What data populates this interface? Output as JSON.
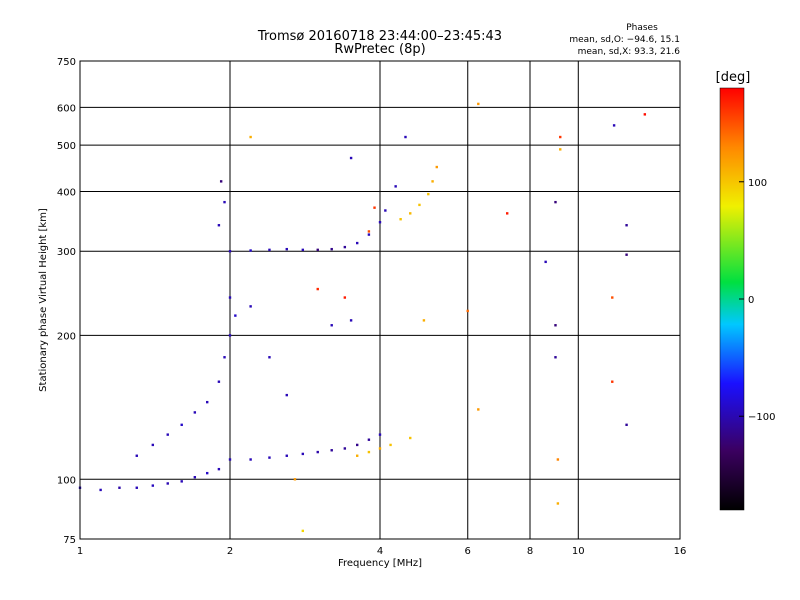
{
  "chart_data": {
    "type": "scatter",
    "title": "Tromsø 20160718 23:44:00–23:45:43",
    "subtitle": "RwPretec (8p)",
    "xlabel": "Frequency [MHz]",
    "ylabel": "Stationary phase Virtual Height [km]",
    "x_scale": "log",
    "y_scale": "log",
    "xlim": [
      1,
      16
    ],
    "ylim": [
      75,
      750
    ],
    "x_ticks": [
      1,
      2,
      4,
      6,
      8,
      10,
      16
    ],
    "x_tick_labels": [
      "1",
      "2",
      "4",
      "6",
      "8",
      "10",
      "16"
    ],
    "y_ticks": [
      75,
      100,
      200,
      300,
      400,
      500,
      600,
      750
    ],
    "y_tick_labels": [
      "75",
      "100",
      "200",
      "300",
      "400",
      "500",
      "600",
      "750"
    ],
    "grid": true,
    "phase_box": {
      "title": "Phases",
      "line_o": "mean, sd,O: −94.6, 15.1",
      "line_x": "mean, sd,X:  93.3, 21.6"
    },
    "colorbar": {
      "label": "[deg]",
      "ticks": [
        100,
        0,
        -100
      ],
      "tick_labels": [
        "100",
        "0",
        "−100"
      ],
      "range": [
        -180,
        180
      ],
      "colors": [
        "#000000",
        "#3b0060",
        "#1a10ff",
        "#00c8ff",
        "#00e040",
        "#f0f000",
        "#ff8800",
        "#ff0000"
      ]
    },
    "series": [
      {
        "values": [
          {
            "x": 1.0,
            "y": 96,
            "p": -100
          },
          {
            "x": 1.1,
            "y": 95,
            "p": -100
          },
          {
            "x": 1.2,
            "y": 96,
            "p": -105
          },
          {
            "x": 1.3,
            "y": 96,
            "p": -100
          },
          {
            "x": 1.4,
            "y": 97,
            "p": -98
          },
          {
            "x": 1.5,
            "y": 98,
            "p": -102
          },
          {
            "x": 1.6,
            "y": 99,
            "p": -100
          },
          {
            "x": 1.7,
            "y": 101,
            "p": -100
          },
          {
            "x": 1.8,
            "y": 103,
            "p": -95
          },
          {
            "x": 1.9,
            "y": 105,
            "p": -100
          },
          {
            "x": 2.0,
            "y": 110,
            "p": -100
          },
          {
            "x": 2.2,
            "y": 110,
            "p": -100
          },
          {
            "x": 2.4,
            "y": 111,
            "p": -100
          },
          {
            "x": 2.6,
            "y": 112,
            "p": -100
          },
          {
            "x": 2.8,
            "y": 113,
            "p": -100
          },
          {
            "x": 3.0,
            "y": 114,
            "p": -105
          },
          {
            "x": 3.2,
            "y": 115,
            "p": -110
          },
          {
            "x": 3.4,
            "y": 116,
            "p": -110
          },
          {
            "x": 3.6,
            "y": 118,
            "p": -115
          },
          {
            "x": 3.8,
            "y": 121,
            "p": -110
          },
          {
            "x": 4.0,
            "y": 124,
            "p": -100
          },
          {
            "x": 1.3,
            "y": 112,
            "p": -100
          },
          {
            "x": 1.4,
            "y": 118,
            "p": -100
          },
          {
            "x": 1.5,
            "y": 124,
            "p": -100
          },
          {
            "x": 1.6,
            "y": 130,
            "p": -95
          },
          {
            "x": 1.7,
            "y": 138,
            "p": -100
          },
          {
            "x": 1.8,
            "y": 145,
            "p": -100
          },
          {
            "x": 1.9,
            "y": 160,
            "p": -100
          },
          {
            "x": 1.95,
            "y": 180,
            "p": -100
          },
          {
            "x": 2.0,
            "y": 200,
            "p": -100
          },
          {
            "x": 2.05,
            "y": 220,
            "p": -95
          },
          {
            "x": 2.0,
            "y": 240,
            "p": -100
          },
          {
            "x": 2.0,
            "y": 300,
            "p": -100
          },
          {
            "x": 2.2,
            "y": 301,
            "p": -95
          },
          {
            "x": 2.4,
            "y": 302,
            "p": -100
          },
          {
            "x": 2.6,
            "y": 303,
            "p": -100
          },
          {
            "x": 2.8,
            "y": 302,
            "p": -100
          },
          {
            "x": 3.0,
            "y": 302,
            "p": -120
          },
          {
            "x": 3.2,
            "y": 303,
            "p": -115
          },
          {
            "x": 3.4,
            "y": 306,
            "p": -110
          },
          {
            "x": 3.6,
            "y": 312,
            "p": -100
          },
          {
            "x": 3.8,
            "y": 325,
            "p": -100
          },
          {
            "x": 4.0,
            "y": 345,
            "p": -100
          },
          {
            "x": 4.1,
            "y": 365,
            "p": -100
          },
          {
            "x": 4.3,
            "y": 410,
            "p": -100
          },
          {
            "x": 4.5,
            "y": 520,
            "p": -100
          },
          {
            "x": 1.9,
            "y": 340,
            "p": -100
          },
          {
            "x": 1.95,
            "y": 380,
            "p": -100
          },
          {
            "x": 1.92,
            "y": 420,
            "p": -120
          },
          {
            "x": 2.2,
            "y": 230,
            "p": -100
          },
          {
            "x": 2.4,
            "y": 180,
            "p": -100
          },
          {
            "x": 2.6,
            "y": 150,
            "p": -100
          },
          {
            "x": 3.5,
            "y": 470,
            "p": -100
          },
          {
            "x": 3.2,
            "y": 210,
            "p": -100
          },
          {
            "x": 3.5,
            "y": 215,
            "p": -100
          },
          {
            "x": 8.6,
            "y": 285,
            "p": -100
          },
          {
            "x": 9.0,
            "y": 210,
            "p": -120
          },
          {
            "x": 9.0,
            "y": 180,
            "p": -110
          },
          {
            "x": 9.0,
            "y": 380,
            "p": -120
          },
          {
            "x": 12.5,
            "y": 340,
            "p": -110
          },
          {
            "x": 12.5,
            "y": 295,
            "p": -120
          },
          {
            "x": 12.5,
            "y": 130,
            "p": -110
          },
          {
            "x": 11.8,
            "y": 550,
            "p": -100
          }
        ]
      },
      {
        "values": [
          {
            "x": 3.6,
            "y": 112,
            "p": 110
          },
          {
            "x": 3.8,
            "y": 114,
            "p": 100
          },
          {
            "x": 4.0,
            "y": 116,
            "p": 110
          },
          {
            "x": 4.2,
            "y": 118,
            "p": 100
          },
          {
            "x": 4.6,
            "y": 122,
            "p": 100
          },
          {
            "x": 4.4,
            "y": 350,
            "p": 100
          },
          {
            "x": 4.6,
            "y": 360,
            "p": 105
          },
          {
            "x": 4.8,
            "y": 375,
            "p": 100
          },
          {
            "x": 5.0,
            "y": 395,
            "p": 100
          },
          {
            "x": 5.1,
            "y": 420,
            "p": 110
          },
          {
            "x": 5.2,
            "y": 450,
            "p": 120
          },
          {
            "x": 3.8,
            "y": 330,
            "p": 150
          },
          {
            "x": 3.9,
            "y": 370,
            "p": 160
          },
          {
            "x": 3.4,
            "y": 240,
            "p": 170
          },
          {
            "x": 3.0,
            "y": 250,
            "p": 165
          },
          {
            "x": 2.7,
            "y": 100,
            "p": 120
          },
          {
            "x": 2.8,
            "y": 78,
            "p": 90
          },
          {
            "x": 2.2,
            "y": 520,
            "p": 110
          },
          {
            "x": 6.3,
            "y": 610,
            "p": 120
          },
          {
            "x": 6.0,
            "y": 225,
            "p": 140
          },
          {
            "x": 6.3,
            "y": 140,
            "p": 120
          },
          {
            "x": 7.2,
            "y": 360,
            "p": 170
          },
          {
            "x": 9.2,
            "y": 520,
            "p": 160
          },
          {
            "x": 9.2,
            "y": 490,
            "p": 110
          },
          {
            "x": 9.1,
            "y": 110,
            "p": 130
          },
          {
            "x": 9.1,
            "y": 89,
            "p": 110
          },
          {
            "x": 11.7,
            "y": 240,
            "p": 150
          },
          {
            "x": 11.7,
            "y": 160,
            "p": 160
          },
          {
            "x": 13.6,
            "y": 580,
            "p": 175
          },
          {
            "x": 4.9,
            "y": 215,
            "p": 110
          }
        ]
      }
    ]
  }
}
